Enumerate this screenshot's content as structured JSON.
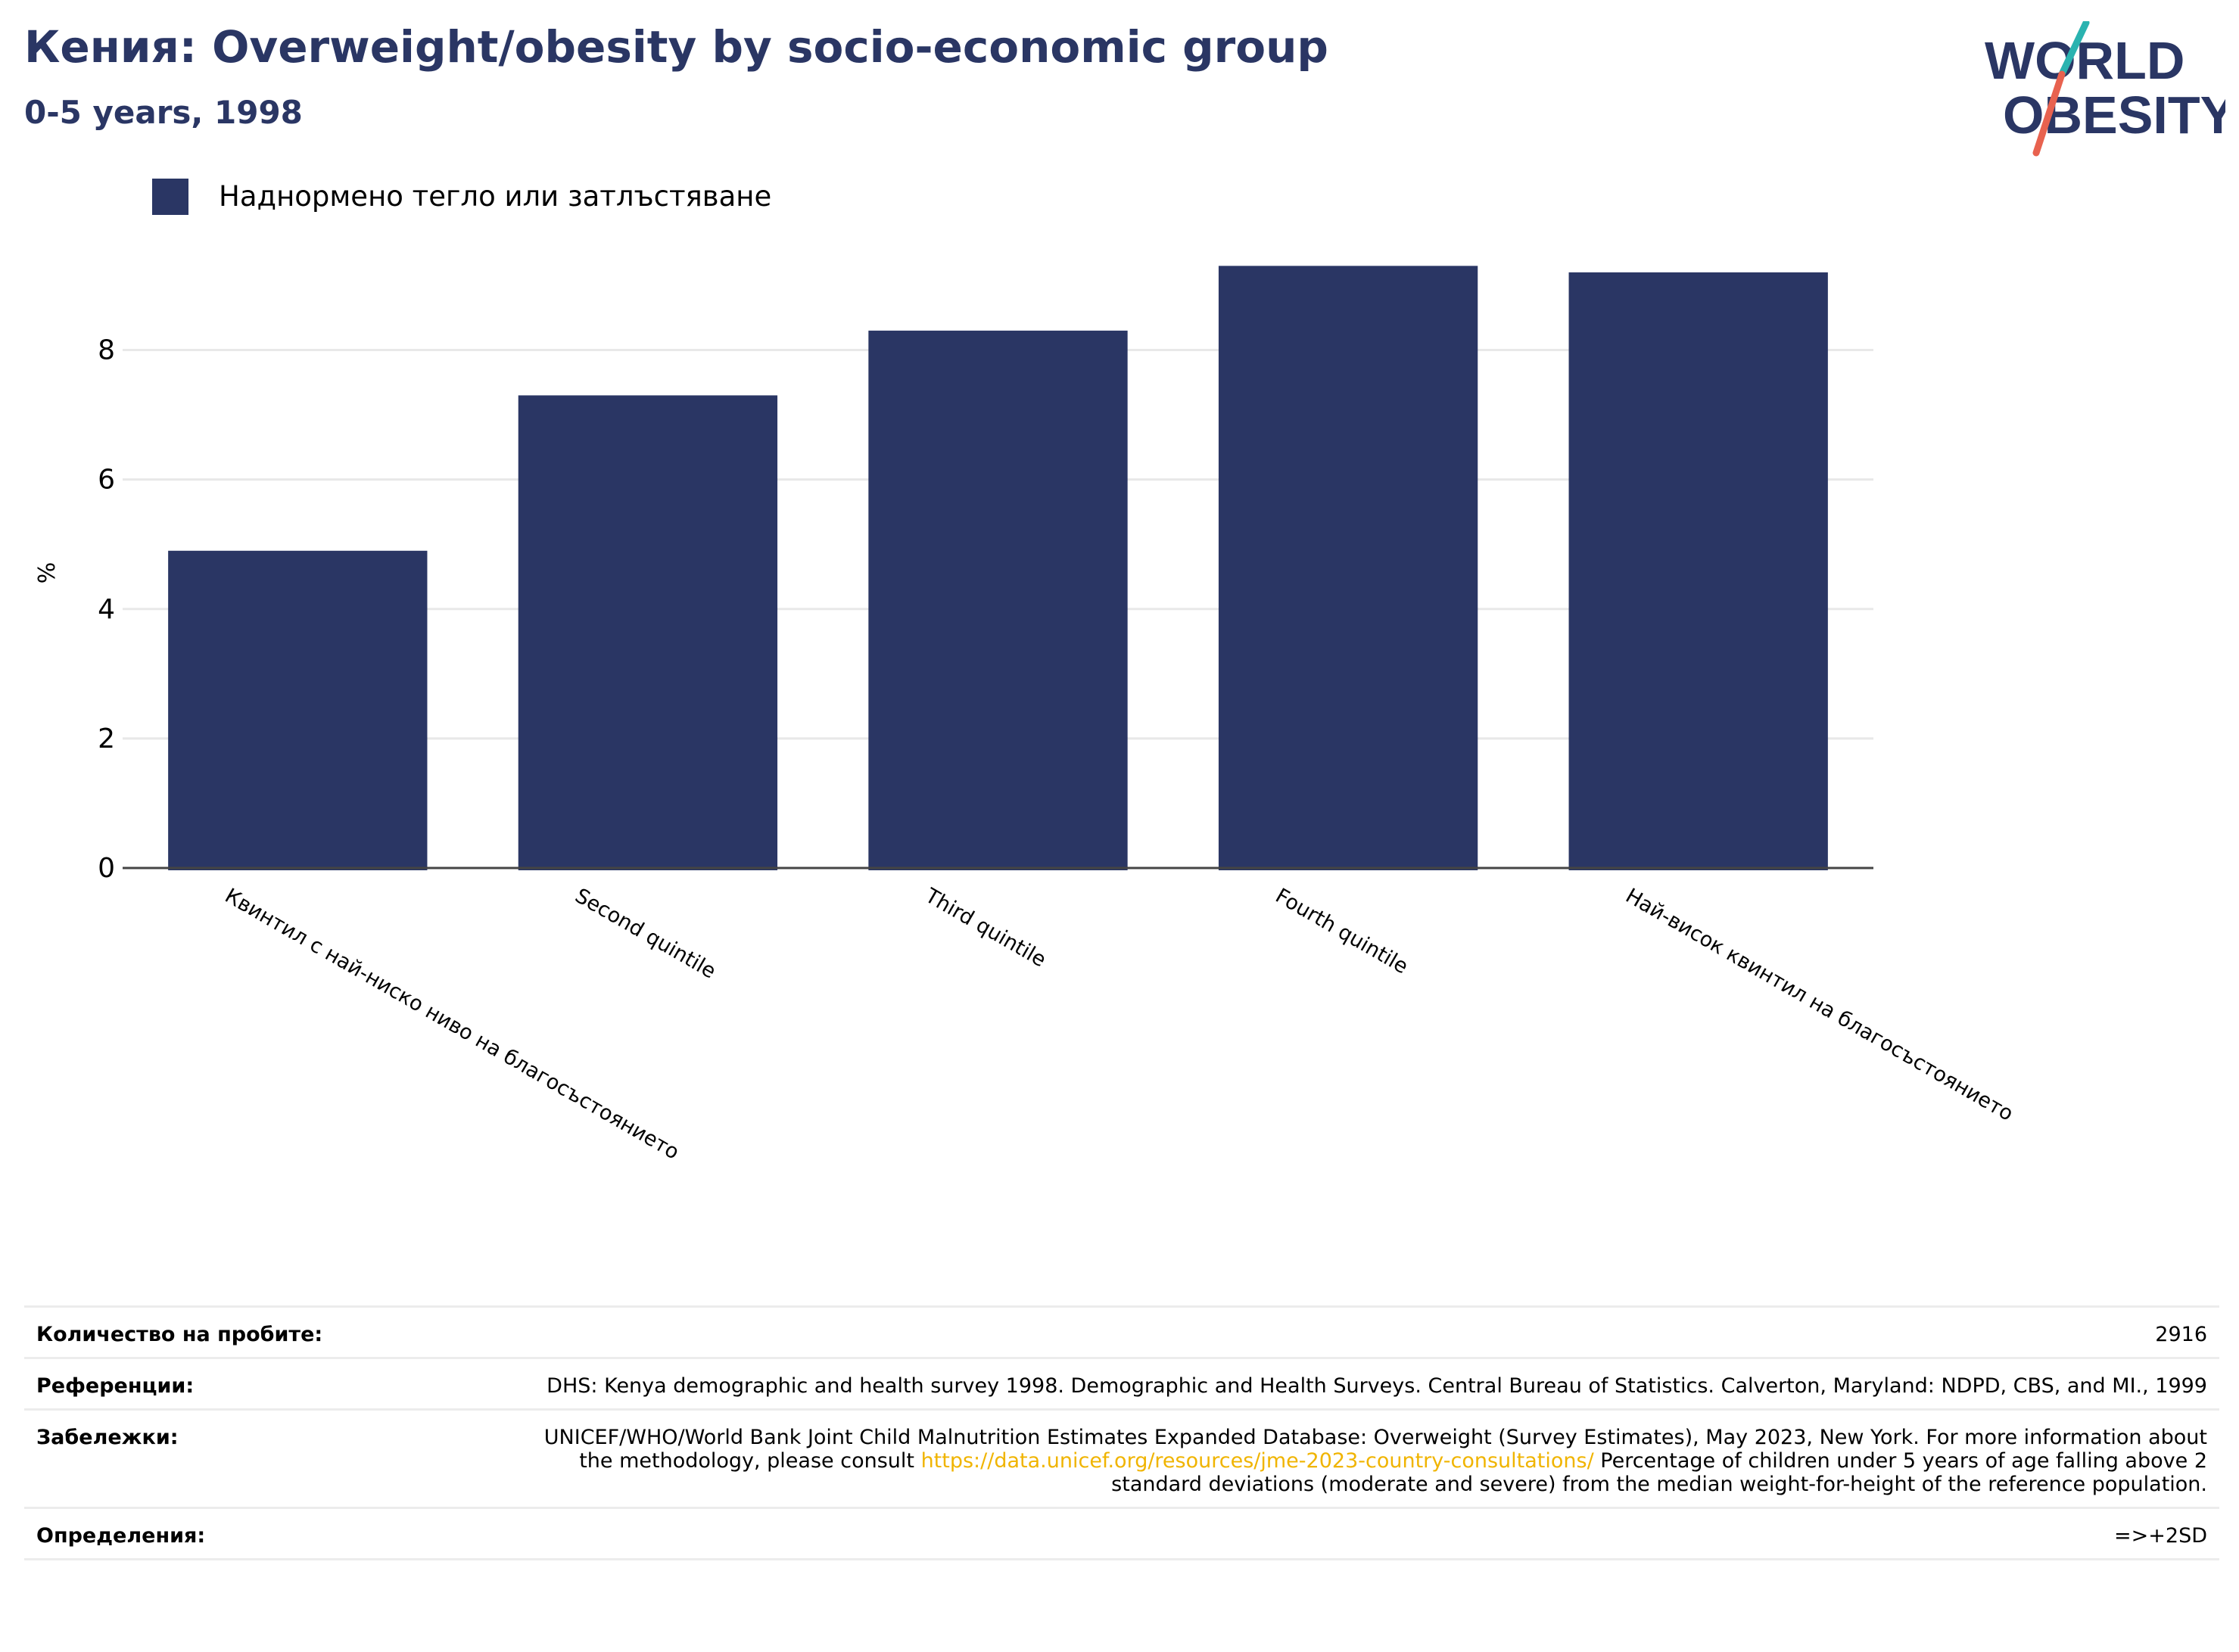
{
  "header": {
    "title": "Кения: Overweight/obesity by socio-economic group",
    "subtitle": "0-5 years, 1998"
  },
  "logo": {
    "line1": "WORLD",
    "line2": "OBESITY",
    "colors": {
      "text": "#2a3664",
      "slash_top": "#2ab3b0",
      "slash_bottom": "#e8624f"
    }
  },
  "chart_data": {
    "type": "bar",
    "categories": [
      "Квинтил с най-ниско ниво на благосъстоянието",
      "Second quintile",
      "Third quintile",
      "Fourth quintile",
      "Най-висок квинтил на благосъстоянието"
    ],
    "series": [
      {
        "name": "Наднормено тегло или затлъстяване",
        "values": [
          4.9,
          7.3,
          8.3,
          9.3,
          9.2
        ],
        "color": "#2a3664"
      }
    ],
    "ylabel": "%",
    "yticks": [
      0,
      2,
      4,
      6,
      8
    ],
    "ylim": [
      0,
      9.9
    ],
    "grid": true,
    "legend_position": "top-left"
  },
  "info": {
    "sample_label": "Количество на пробите:",
    "sample_value": "2916",
    "refs_label": "Референции:",
    "refs_value": "DHS: Kenya demographic and health survey 1998. Demographic and Health Surveys. Central Bureau of Statistics. Calverton, Maryland: NDPD, CBS, and MI., 1999",
    "notes_label": "Забележки:",
    "notes_before": "UNICEF/WHO/World Bank Joint Child Malnutrition Estimates Expanded Database: Overweight (Survey Estimates), May 2023, New York. For more information about the methodology, please consult ",
    "notes_link": "https://data.unicef.org/resources/jme-2023-country-consultations/",
    "notes_after": " Percentage of children under 5 years of age falling above 2 standard deviations (moderate and severe) from the median weight-for-height of the reference population.",
    "defs_label": "Определения:",
    "defs_value": "=>+2SD"
  }
}
